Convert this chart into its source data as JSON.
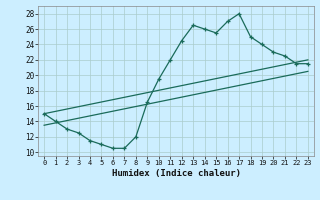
{
  "title": "",
  "xlabel": "Humidex (Indice chaleur)",
  "bg_color": "#cceeff",
  "grid_color": "#aacccc",
  "line_color": "#1a6b5a",
  "xlim": [
    -0.5,
    23.5
  ],
  "ylim": [
    9.5,
    29.0
  ],
  "xticks": [
    0,
    1,
    2,
    3,
    4,
    5,
    6,
    7,
    8,
    9,
    10,
    11,
    12,
    13,
    14,
    15,
    16,
    17,
    18,
    19,
    20,
    21,
    22,
    23
  ],
  "yticks": [
    10,
    12,
    14,
    16,
    18,
    20,
    22,
    24,
    26,
    28
  ],
  "curve_x": [
    0,
    1,
    2,
    3,
    4,
    5,
    6,
    7,
    8,
    9,
    10,
    11,
    12,
    13,
    14,
    15,
    16,
    17,
    18,
    19,
    20,
    21,
    22,
    23
  ],
  "curve_y": [
    15,
    14,
    13,
    12.5,
    11.5,
    11,
    10.5,
    10.5,
    12,
    16.5,
    19.5,
    22,
    24.5,
    26.5,
    26,
    25.5,
    27,
    28,
    25,
    24,
    23,
    22.5,
    21.5,
    21.5
  ],
  "line1_x": [
    0,
    23
  ],
  "line1_y": [
    15.0,
    22.0
  ],
  "line2_x": [
    0,
    23
  ],
  "line2_y": [
    13.5,
    20.5
  ]
}
